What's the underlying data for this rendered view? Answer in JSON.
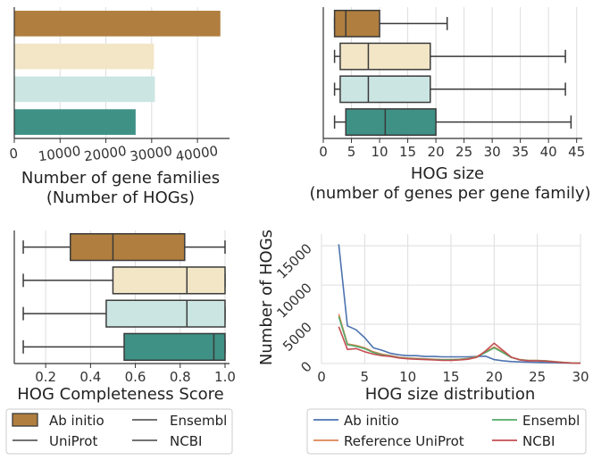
{
  "colors": {
    "ab_initio": "#b07e3f",
    "uniprot": "#f2e6c7",
    "ensembl": "#cbe6e2",
    "ncbi": "#3f9186",
    "line_ab_initio": "#4c72b0",
    "line_reference_uniprot": "#dd8452",
    "line_ensembl": "#55a868",
    "line_ncbi": "#c44e52"
  },
  "legend_left": {
    "items": [
      "Ab initio",
      "Ensembl",
      "UniProt",
      "NCBI"
    ]
  },
  "legend_right": {
    "items": [
      "Ab initio",
      "Ensembl",
      "Reference UniProt",
      "NCBI"
    ]
  },
  "chart_data": [
    {
      "type": "bar",
      "orientation": "horizontal",
      "xlabel_line1": "Number of gene families",
      "xlabel_line2": "(Number of HOGs)",
      "categories": [
        "Ab initio",
        "UniProt",
        "Ensembl",
        "NCBI"
      ],
      "values": [
        45000,
        30500,
        30700,
        26500
      ],
      "xlim": [
        0,
        47000
      ],
      "xticks": [
        0,
        10000,
        20000,
        30000,
        40000
      ],
      "grid": true
    },
    {
      "type": "box",
      "orientation": "horizontal",
      "xlabel_line1": "HOG size",
      "xlabel_line2": "(number of genes per gene family)",
      "categories": [
        "Ab initio",
        "UniProt",
        "Ensembl",
        "NCBI"
      ],
      "boxes": [
        {
          "whislo": 2,
          "q1": 2,
          "med": 4,
          "q3": 10,
          "whishi": 22
        },
        {
          "whislo": 2,
          "q1": 3,
          "med": 8,
          "q3": 19,
          "whishi": 43
        },
        {
          "whislo": 2,
          "q1": 3,
          "med": 8,
          "q3": 19,
          "whishi": 43
        },
        {
          "whislo": 2,
          "q1": 4,
          "med": 11,
          "q3": 20,
          "whishi": 44
        }
      ],
      "xlim": [
        0,
        46
      ],
      "xticks": [
        0,
        5,
        10,
        15,
        20,
        25,
        30,
        35,
        40,
        45
      ],
      "grid": true
    },
    {
      "type": "box",
      "orientation": "horizontal",
      "xlabel": "HOG Completeness Score",
      "categories": [
        "Ab initio",
        "UniProt",
        "Ensembl",
        "NCBI"
      ],
      "boxes": [
        {
          "whislo": 0.1,
          "q1": 0.31,
          "med": 0.5,
          "q3": 0.82,
          "whishi": 1.0
        },
        {
          "whislo": 0.1,
          "q1": 0.5,
          "med": 0.83,
          "q3": 1.0,
          "whishi": 1.0
        },
        {
          "whislo": 0.1,
          "q1": 0.47,
          "med": 0.83,
          "q3": 1.0,
          "whishi": 1.0
        },
        {
          "whislo": 0.1,
          "q1": 0.55,
          "med": 0.95,
          "q3": 1.0,
          "whishi": 1.0
        }
      ],
      "xlim": [
        0.06,
        1.02
      ],
      "xticks": [
        0.2,
        0.4,
        0.6,
        0.8,
        1.0
      ],
      "grid": true
    },
    {
      "type": "line",
      "xlabel": "HOG size distribution",
      "ylabel": "Number of HOGs",
      "xlim": [
        0,
        30
      ],
      "ylim": [
        0,
        16500
      ],
      "xticks": [
        0,
        5,
        10,
        15,
        20,
        25,
        30
      ],
      "yticks": [
        0,
        5000,
        10000,
        15000
      ],
      "grid": true,
      "series": [
        {
          "name": "Ab initio",
          "x": [
            2,
            3,
            4,
            5,
            6,
            7,
            8,
            9,
            10,
            11,
            12,
            13,
            14,
            15,
            16,
            17,
            18,
            19,
            20,
            21,
            22,
            23,
            24,
            25,
            26,
            27,
            28,
            29,
            30
          ],
          "y": [
            15200,
            4800,
            4300,
            3300,
            2000,
            1700,
            1300,
            1100,
            1000,
            1000,
            900,
            900,
            850,
            850,
            850,
            850,
            900,
            950,
            500,
            350,
            250,
            200,
            180,
            150,
            120,
            100,
            80,
            60,
            50
          ]
        },
        {
          "name": "Reference UniProt",
          "x": [
            2,
            3,
            4,
            5,
            6,
            7,
            8,
            9,
            10,
            11,
            12,
            13,
            14,
            15,
            16,
            17,
            18,
            19,
            20,
            21,
            22,
            23,
            24,
            25,
            26,
            27,
            28,
            29,
            30
          ],
          "y": [
            6300,
            2500,
            2300,
            2000,
            1500,
            1200,
            1000,
            800,
            700,
            650,
            600,
            550,
            500,
            500,
            550,
            650,
            900,
            1500,
            2100,
            1500,
            800,
            500,
            400,
            400,
            350,
            250,
            150,
            80,
            50
          ]
        },
        {
          "name": "Ensembl",
          "x": [
            2,
            3,
            4,
            5,
            6,
            7,
            8,
            9,
            10,
            11,
            12,
            13,
            14,
            15,
            16,
            17,
            18,
            19,
            20,
            21,
            22,
            23,
            24,
            25,
            26,
            27,
            28,
            29,
            30
          ],
          "y": [
            6000,
            2400,
            2200,
            1900,
            1400,
            1100,
            950,
            750,
            650,
            600,
            550,
            500,
            480,
            480,
            520,
            600,
            850,
            1400,
            2000,
            1400,
            750,
            480,
            380,
            380,
            330,
            230,
            140,
            70,
            40
          ]
        },
        {
          "name": "NCBI",
          "x": [
            2,
            3,
            4,
            5,
            6,
            7,
            8,
            9,
            10,
            11,
            12,
            13,
            14,
            15,
            16,
            17,
            18,
            19,
            20,
            21,
            22,
            23,
            24,
            25,
            26,
            27,
            28,
            29,
            30
          ],
          "y": [
            4700,
            1800,
            1900,
            1500,
            1200,
            1000,
            900,
            700,
            600,
            550,
            500,
            450,
            400,
            400,
            450,
            550,
            800,
            1600,
            2600,
            1700,
            800,
            450,
            350,
            350,
            300,
            200,
            120,
            60,
            30
          ]
        }
      ]
    }
  ]
}
